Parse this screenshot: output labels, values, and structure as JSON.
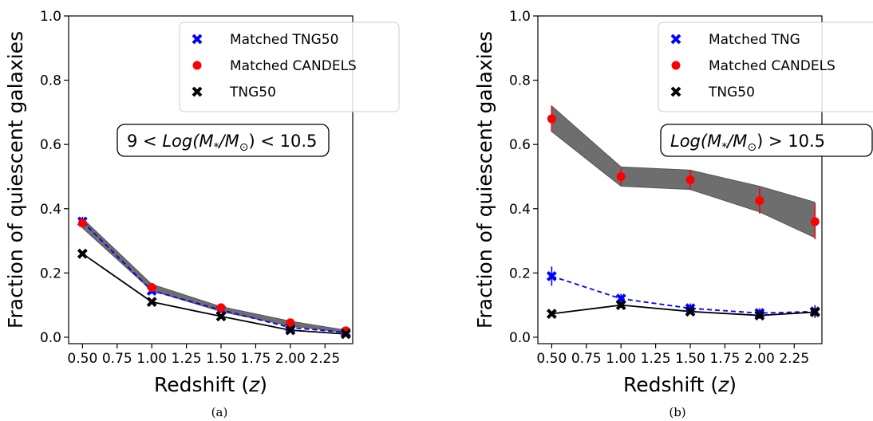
{
  "chart_data": [
    {
      "type": "line",
      "panel_label": "(a)",
      "annotation": "9 < Log(M_*/M_⊙) < 10.5",
      "xlabel": "Redshift (z)",
      "ylabel": "Fraction of quiescent galaxies",
      "xlim": [
        0.4,
        2.45
      ],
      "ylim": [
        -0.02,
        1.0
      ],
      "xticks": [
        "0.50",
        "0.75",
        "1.00",
        "1.25",
        "1.50",
        "1.75",
        "2.00",
        "2.25"
      ],
      "yticks": [
        "0.0",
        "0.2",
        "0.4",
        "0.6",
        "0.8",
        "1.0"
      ],
      "x": [
        0.5,
        1.0,
        1.5,
        2.0,
        2.4
      ],
      "band": {
        "lower": [
          0.34,
          0.145,
          0.08,
          0.035,
          0.015
        ],
        "upper": [
          0.37,
          0.165,
          0.095,
          0.05,
          0.022
        ],
        "color": "#6e6e6e"
      },
      "series": [
        {
          "name": "Matched TNG50",
          "values": [
            0.36,
            0.145,
            0.085,
            0.03,
            0.015
          ],
          "err": [
            0.015,
            0.01,
            0.008,
            0.006,
            0.005
          ],
          "color": "#0000ff",
          "marker": "x",
          "line": "dashed"
        },
        {
          "name": "Matched CANDELS",
          "values": [
            0.355,
            0.155,
            0.092,
            0.045,
            0.02
          ],
          "err": [
            0,
            0,
            0,
            0,
            0
          ],
          "color": "#ff0000",
          "marker": "o",
          "line": "none"
        },
        {
          "name": "TNG50",
          "values": [
            0.26,
            0.11,
            0.065,
            0.022,
            0.01
          ],
          "err": [
            0.006,
            0.006,
            0.006,
            0.005,
            0.005
          ],
          "color": "#000000",
          "marker": "x",
          "line": "solid"
        }
      ],
      "legend_position": "top-right"
    },
    {
      "type": "line",
      "panel_label": "(b)",
      "annotation": "Log(M_*/M_⊙) > 10.5",
      "xlabel": "Redshift (z)",
      "ylabel": "Fraction of quiescent galaxies",
      "xlim": [
        0.4,
        2.45
      ],
      "ylim": [
        -0.02,
        1.0
      ],
      "xticks": [
        "0.50",
        "0.75",
        "1.00",
        "1.25",
        "1.50",
        "1.75",
        "2.00",
        "2.25"
      ],
      "yticks": [
        "0.0",
        "0.2",
        "0.4",
        "0.6",
        "0.8",
        "1.0"
      ],
      "x": [
        0.5,
        1.0,
        1.5,
        2.0,
        2.4
      ],
      "band": {
        "lower": [
          0.64,
          0.47,
          0.46,
          0.39,
          0.31
        ],
        "upper": [
          0.72,
          0.53,
          0.52,
          0.47,
          0.42
        ],
        "color": "#6e6e6e"
      },
      "series": [
        {
          "name": "Matched TNG",
          "values": [
            0.19,
            0.12,
            0.09,
            0.075,
            0.08
          ],
          "err": [
            0.03,
            0.015,
            0.015,
            0.015,
            0.02
          ],
          "color": "#0000ff",
          "marker": "x",
          "line": "dashed"
        },
        {
          "name": "Matched CANDELS",
          "values": [
            0.68,
            0.5,
            0.49,
            0.425,
            0.36
          ],
          "err": [
            0.04,
            0.025,
            0.03,
            0.04,
            0.055
          ],
          "color": "#ff0000",
          "marker": "o",
          "line": "none"
        },
        {
          "name": "TNG50",
          "values": [
            0.073,
            0.1,
            0.08,
            0.068,
            0.078
          ],
          "err": [
            0.006,
            0.008,
            0.007,
            0.01,
            0.015
          ],
          "color": "#000000",
          "marker": "x",
          "line": "solid"
        }
      ],
      "legend_position": "top-right"
    }
  ]
}
